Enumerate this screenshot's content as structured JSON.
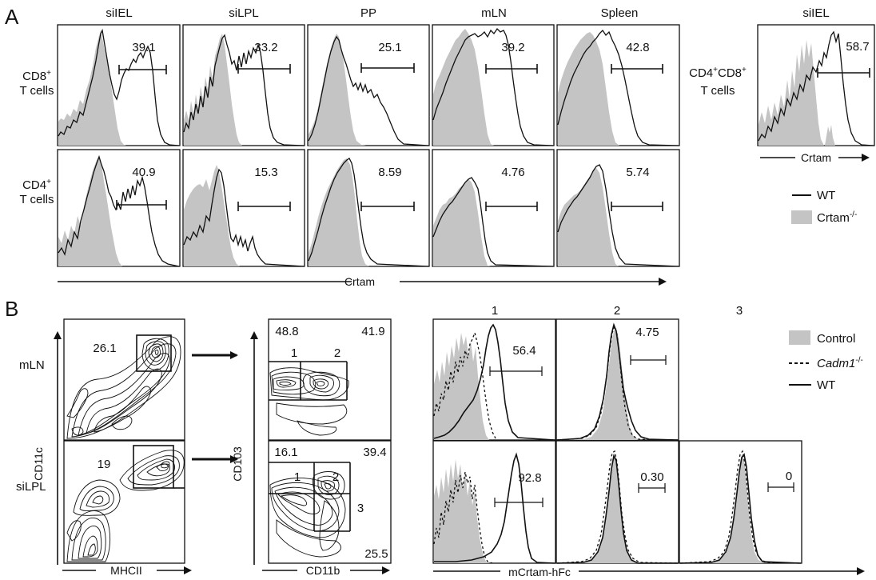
{
  "panel_a": {
    "letter": "A",
    "columns": [
      "siIEL",
      "siLPL",
      "PP",
      "mLN",
      "Spleen"
    ],
    "side_column": "siIEL",
    "row_cd8": [
      "CD8",
      "+",
      "T cells"
    ],
    "row_cd4": [
      "CD4",
      "+",
      "T cells"
    ],
    "row_dp": [
      "CD4",
      "+",
      "CD8",
      "+",
      "T cells"
    ],
    "cd8_pcts": [
      "39.1",
      "33.2",
      "25.1",
      "39.2",
      "42.8"
    ],
    "cd4_pcts": [
      "40.9",
      "15.3",
      "8.59",
      "4.76",
      "5.74"
    ],
    "dp_pct": "58.7",
    "x_axis": "Crtam",
    "side_x_axis": "Crtam",
    "legend": {
      "wt": "WT",
      "ko_base": "Crtam",
      "ko_sup": "-/-"
    }
  },
  "panel_b": {
    "letter": "B",
    "rows": [
      "mLN",
      "siLPL"
    ],
    "dot1": {
      "ylabel": "CD11c",
      "xlabel": "MHCII",
      "gate_mln": "26.1",
      "gate_silpl": "19"
    },
    "dot2": {
      "ylabel": "CD103",
      "xlabel": "CD11b",
      "mln": {
        "tl": "48.8",
        "tr": "41.9",
        "g1": "1",
        "g2": "2"
      },
      "silpl": {
        "tl": "16.1",
        "tr": "39.4",
        "br": "25.5",
        "g1": "1",
        "g2": "2",
        "g3": "3"
      }
    },
    "hist_cols": [
      "1",
      "2",
      "3"
    ],
    "hist_mln": [
      "56.4",
      "4.75"
    ],
    "hist_silpl": [
      "92.8",
      "0.30",
      "0"
    ],
    "x_axis": "mCrtam-hFc",
    "legend": {
      "control": "Control",
      "cadm_base": "Cadm1",
      "cadm_sup": "-/-",
      "wt": "WT"
    }
  },
  "colors": {
    "ink": "#111111",
    "fill": "#c4c4c4"
  }
}
